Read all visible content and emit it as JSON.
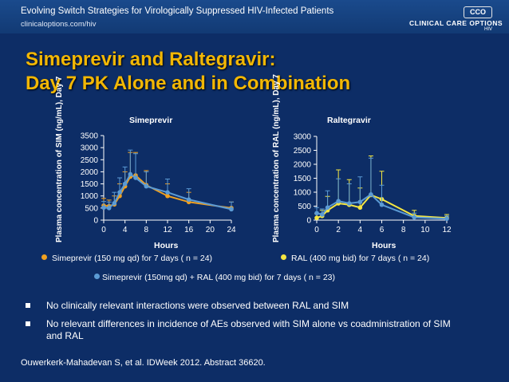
{
  "header": {
    "title": "Evolving Switch Strategies for Virologically Suppressed HIV-Infected Patients",
    "url": "clinicaloptions.com/hiv",
    "logo_box": "CCO",
    "logo_text": "CLINICAL CARE OPTIONS",
    "logo_sub": "HIV"
  },
  "slide": {
    "title_line1": "Simeprevir and Raltegravir:",
    "title_line2": "Day 7 PK Alone and in Combination"
  },
  "colors": {
    "orange": "#f0a020",
    "blue": "#5b9bd5",
    "yellow": "#f5e642",
    "axis": "#ffffff"
  },
  "chart_data": [
    {
      "type": "line",
      "title": "Simeprevir",
      "ylabel": "Plasma concentration of SIM (ng/mL), Day 7",
      "xlabel": "Hours",
      "xlim": [
        0,
        24
      ],
      "ylim": [
        0,
        3500
      ],
      "xticks": [
        0,
        4,
        8,
        12,
        16,
        20,
        24
      ],
      "yticks": [
        0,
        500,
        1000,
        1500,
        2000,
        2500,
        3000,
        3500
      ],
      "series": [
        {
          "name": "Simeprevir (150 mg qd) for 7 days ( n = 24)",
          "color": "#f0a020",
          "points": [
            {
              "x": 0,
              "y": 600,
              "err": 300
            },
            {
              "x": 1,
              "y": 580,
              "err": 250
            },
            {
              "x": 2,
              "y": 650,
              "err": 350
            },
            {
              "x": 3,
              "y": 1000,
              "err": 500
            },
            {
              "x": 4,
              "y": 1400,
              "err": 600
            },
            {
              "x": 5,
              "y": 1800,
              "err": 1000
            },
            {
              "x": 6,
              "y": 1850,
              "err": 950
            },
            {
              "x": 8,
              "y": 1450,
              "err": 600
            },
            {
              "x": 12,
              "y": 1000,
              "err": 500
            },
            {
              "x": 16,
              "y": 750,
              "err": 400
            },
            {
              "x": 24,
              "y": 500,
              "err": 250
            }
          ]
        },
        {
          "name": "Simeprevir (150mg qd) + RAL (400 mg bid) for 7 days ( n = 23)",
          "color": "#5b9bd5",
          "points": [
            {
              "x": 0,
              "y": 520,
              "err": 250
            },
            {
              "x": 1,
              "y": 500,
              "err": 250
            },
            {
              "x": 2,
              "y": 700,
              "err": 450
            },
            {
              "x": 3,
              "y": 1150,
              "err": 600
            },
            {
              "x": 4,
              "y": 1500,
              "err": 700
            },
            {
              "x": 5,
              "y": 1900,
              "err": 1000
            },
            {
              "x": 6,
              "y": 1750,
              "err": 1000
            },
            {
              "x": 8,
              "y": 1400,
              "err": 600
            },
            {
              "x": 12,
              "y": 1150,
              "err": 550
            },
            {
              "x": 16,
              "y": 850,
              "err": 450
            },
            {
              "x": 24,
              "y": 450,
              "err": 300
            }
          ]
        }
      ]
    },
    {
      "type": "line",
      "title": "Raltegravir",
      "ylabel": "Plasma concentration of RAL (ng/mL), Day 7",
      "xlabel": "Hours",
      "xlim": [
        0,
        12
      ],
      "ylim": [
        0,
        3000
      ],
      "xticks": [
        0,
        2,
        4,
        6,
        8,
        10,
        12
      ],
      "yticks": [
        0,
        500,
        1000,
        1500,
        2000,
        2500,
        3000
      ],
      "series": [
        {
          "name": "RAL (400 mg bid) for 7 days ( n = 24)",
          "color": "#f5e642",
          "points": [
            {
              "x": 0,
              "y": 80,
              "err": 150
            },
            {
              "x": 0.5,
              "y": 150,
              "err": 200
            },
            {
              "x": 1,
              "y": 350,
              "err": 500
            },
            {
              "x": 2,
              "y": 600,
              "err": 1200
            },
            {
              "x": 3,
              "y": 550,
              "err": 900
            },
            {
              "x": 4,
              "y": 450,
              "err": 700
            },
            {
              "x": 5,
              "y": 900,
              "err": 1400
            },
            {
              "x": 6,
              "y": 750,
              "err": 1000
            },
            {
              "x": 9,
              "y": 150,
              "err": 200
            },
            {
              "x": 12,
              "y": 80,
              "err": 120
            }
          ]
        },
        {
          "name": "Simeprevir (150mg qd) + RAL (400 mg bid) for 7 days ( n = 23)",
          "color": "#5b9bd5",
          "points": [
            {
              "x": 0,
              "y": 250,
              "err": 200
            },
            {
              "x": 0.5,
              "y": 200,
              "err": 200
            },
            {
              "x": 1,
              "y": 450,
              "err": 600
            },
            {
              "x": 2,
              "y": 680,
              "err": 800
            },
            {
              "x": 3,
              "y": 600,
              "err": 700
            },
            {
              "x": 4,
              "y": 650,
              "err": 900
            },
            {
              "x": 5,
              "y": 920,
              "err": 1300
            },
            {
              "x": 6,
              "y": 550,
              "err": 700
            },
            {
              "x": 9,
              "y": 100,
              "err": 150
            },
            {
              "x": 12,
              "y": 50,
              "err": 100
            }
          ]
        }
      ]
    }
  ],
  "legend": {
    "sim": "Simeprevir (150 mg qd) for 7 days ( n = 24)",
    "ral": "RAL (400 mg bid) for 7 days ( n = 24)",
    "combo": "Simeprevir (150mg qd) + RAL (400 mg bid) for 7 days ( n = 23)"
  },
  "bullets": [
    "No clinically relevant interactions were observed between RAL and SIM",
    "No relevant differences in incidence of AEs observed with SIM alone vs coadministration of SIM and RAL"
  ],
  "footer": "Ouwerkerk-Mahadevan S, et al. IDWeek 2012. Abstract 36620."
}
